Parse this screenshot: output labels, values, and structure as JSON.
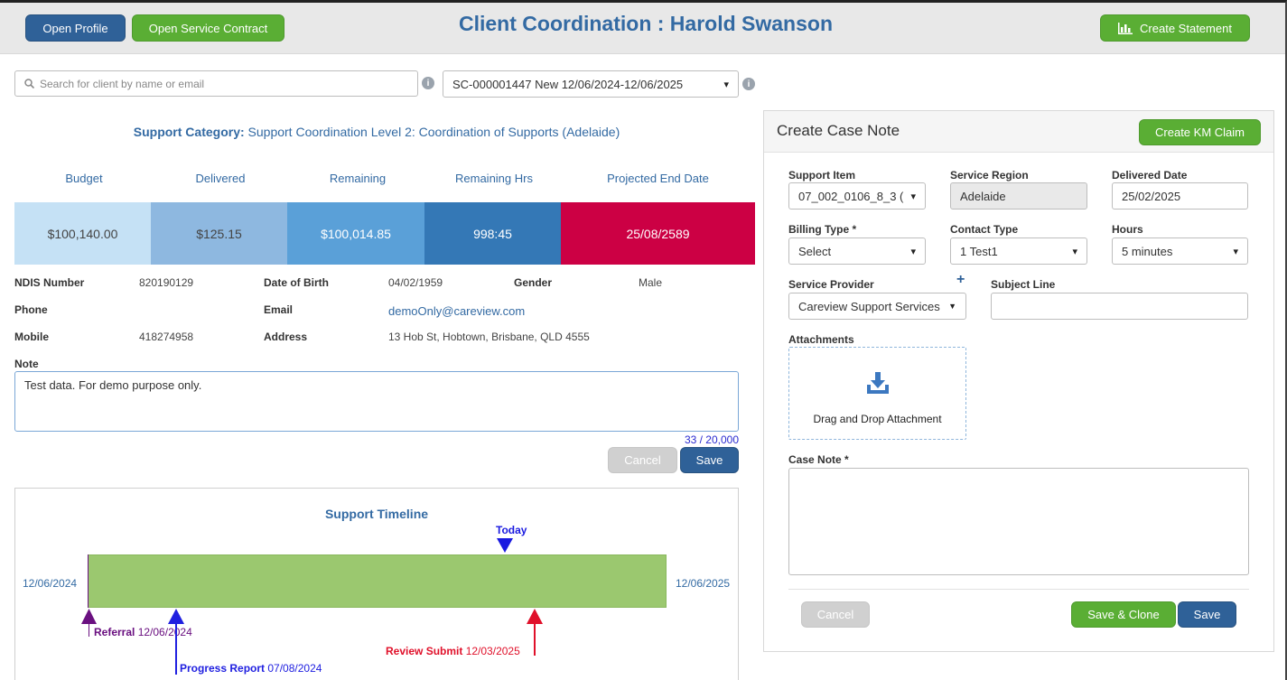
{
  "header": {
    "open_profile": "Open Profile",
    "open_service_contract": "Open Service Contract",
    "title": "Client Coordination : Harold Swanson",
    "create_statement": "Create Statement"
  },
  "search": {
    "placeholder": "Search for client by name or email",
    "contract_selected": "SC-000001447 New 12/06/2024-12/06/2025"
  },
  "support_category": {
    "label": "Support Category:",
    "value": "Support Coordination Level 2: Coordination of Supports (Adelaide)"
  },
  "stats": {
    "labels": [
      "Budget",
      "Delivered",
      "Remaining",
      "Remaining Hrs",
      "Projected End Date"
    ],
    "values": [
      "$100,140.00",
      "$125.15",
      "$100,014.85",
      "998:45",
      "25/08/2589"
    ],
    "colors": [
      "#c5e1f5",
      "#8eb8e0",
      "#5aa0d8",
      "#3478b6",
      "#cc0044"
    ]
  },
  "client": {
    "ndis_label": "NDIS Number",
    "ndis": "820190129",
    "dob_label": "Date of Birth",
    "dob": "04/02/1959",
    "gender_label": "Gender",
    "gender": "Male",
    "phone_label": "Phone",
    "phone": "",
    "email_label": "Email",
    "email": "demoOnly@careview.com",
    "mobile_label": "Mobile",
    "mobile": "418274958",
    "address_label": "Address",
    "address": "13 Hob St, Hobtown, Brisbane, QLD 4555"
  },
  "note": {
    "label": "Note",
    "text": "Test data. For demo purpose only.",
    "count": "33 / 20,000",
    "cancel": "Cancel",
    "save": "Save"
  },
  "timeline": {
    "title": "Support Timeline",
    "start": "12/06/2024",
    "end": "12/06/2025",
    "today": "Today",
    "referral_label": "Referral",
    "referral_date": "12/06/2024",
    "progress_label": "Progress Report",
    "progress_date": "07/08/2024",
    "review_label": "Review Submit",
    "review_date": "12/03/2025",
    "colors": {
      "bar": "#9bc86f",
      "referral": "#6a1080",
      "progress": "#2020e0",
      "today": "#1a1ae0",
      "review": "#e0102a"
    }
  },
  "case_note": {
    "title": "Create Case Note",
    "create_km_claim": "Create KM Claim",
    "support_item_label": "Support Item",
    "support_item": "07_002_0106_8_3 (",
    "service_region_label": "Service Region",
    "service_region": "Adelaide",
    "delivered_date_label": "Delivered Date",
    "delivered_date": "25/02/2025",
    "billing_type_label": "Billing Type *",
    "billing_type": "Select",
    "contact_type_label": "Contact Type",
    "contact_type": "1 Test1",
    "hours_label": "Hours",
    "hours": "5 minutes",
    "service_provider_label": "Service Provider",
    "service_provider": "Careview Support Services",
    "subject_line_label": "Subject Line",
    "subject_line": "",
    "attachments_label": "Attachments",
    "drag_drop": "Drag and Drop Attachment",
    "case_note_label": "Case Note *",
    "cancel": "Cancel",
    "save_clone": "Save & Clone",
    "save": "Save"
  }
}
